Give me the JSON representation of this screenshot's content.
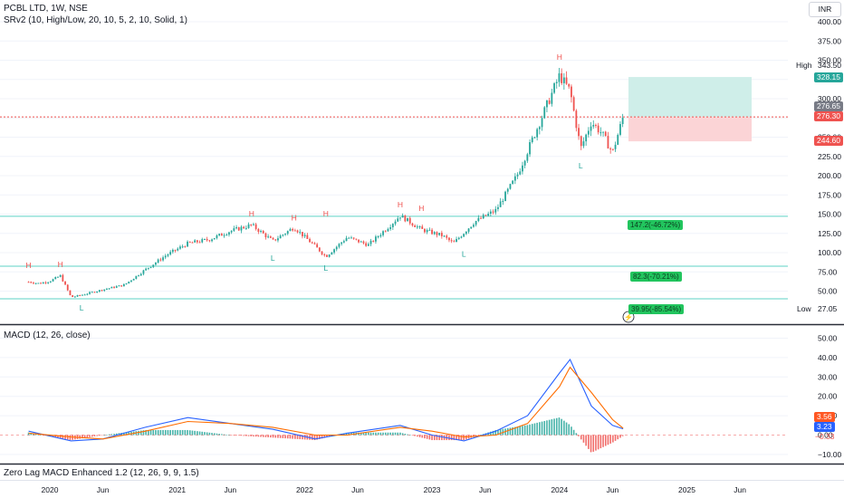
{
  "header": {
    "symbol_line": "PCBL LTD, 1W, NSE",
    "indicator_line": "SRv2 (10, High/Low, 20, 10, 5, 2, 10, Solid, 1)",
    "currency": "INR"
  },
  "macd_panel": {
    "title": "MACD (12, 26, close)"
  },
  "zero_lag_panel": {
    "title": "Zero Lag MACD Enhanced 1.2 (12, 26, 9, 9, 1.5)"
  },
  "price_axis": {
    "ticks": [
      "400.00",
      "375.00",
      "350.00",
      "325.00",
      "300.00",
      "275.00",
      "250.00",
      "225.00",
      "200.00",
      "175.00",
      "150.00",
      "125.00",
      "100.00",
      "75.00",
      "50.00"
    ],
    "values": [
      400,
      375,
      350,
      325,
      300,
      275,
      250,
      225,
      200,
      175,
      150,
      125,
      100,
      75,
      50
    ]
  },
  "macd_axis": {
    "ticks": [
      "50.00",
      "40.00",
      "30.00",
      "20.00",
      "10.00",
      "0.00",
      "−10.00"
    ],
    "values": [
      50,
      40,
      30,
      20,
      10,
      0,
      -10
    ]
  },
  "time_axis": {
    "labels": [
      "2020",
      "Jun",
      "2021",
      "Jun",
      "2022",
      "Jun",
      "2023",
      "Jun",
      "2024",
      "Jun",
      "2025",
      "Jun"
    ]
  },
  "price_badges": {
    "high_label": "High",
    "high_value": "343.50",
    "target_value": "328.15",
    "current_value": "276.65",
    "entry_value": "276.30",
    "stop_value": "244.60",
    "low_label": "Low",
    "low_value": "27.05"
  },
  "macd_badges": {
    "signal": "3.56",
    "macd": "3.23",
    "hist": "−0.33"
  },
  "level_labels": [
    "147.2(-46.72%)",
    "82.3(-70.21%)",
    "39.95(-85.54%)"
  ],
  "pivot_marks": {
    "high": "H",
    "low": "L"
  },
  "colors": {
    "up": "#26a69a",
    "down": "#ef5350",
    "macd": "#2962ff",
    "signal": "#ff6d00",
    "level": "#5ed3c5",
    "target_zone": "#cfeee9",
    "stop_zone": "#fbd4d6",
    "entry_line": "#ef5350",
    "badge_green": "#22c55e"
  },
  "chart_data": [
    {
      "type": "candlestick",
      "title": "PCBL LTD, 1W, NSE",
      "x_range": [
        "2019-11",
        "2025-08"
      ],
      "ylim": [
        27.05,
        400
      ],
      "close_approx": [
        {
          "date": "2019-11",
          "value": 62
        },
        {
          "date": "2019-12",
          "value": 60
        },
        {
          "date": "2020-01",
          "value": 63
        },
        {
          "date": "2020-02",
          "value": 70
        },
        {
          "date": "2020-03",
          "value": 42
        },
        {
          "date": "2020-04",
          "value": 45
        },
        {
          "date": "2020-06",
          "value": 52
        },
        {
          "date": "2020-08",
          "value": 58
        },
        {
          "date": "2020-10",
          "value": 78
        },
        {
          "date": "2020-12",
          "value": 97
        },
        {
          "date": "2021-02",
          "value": 112
        },
        {
          "date": "2021-04",
          "value": 117
        },
        {
          "date": "2021-06",
          "value": 128
        },
        {
          "date": "2021-08",
          "value": 136
        },
        {
          "date": "2021-10",
          "value": 115
        },
        {
          "date": "2021-12",
          "value": 133
        },
        {
          "date": "2022-02",
          "value": 108
        },
        {
          "date": "2022-03",
          "value": 95
        },
        {
          "date": "2022-05",
          "value": 120
        },
        {
          "date": "2022-07",
          "value": 110
        },
        {
          "date": "2022-09",
          "value": 135
        },
        {
          "date": "2022-10",
          "value": 148
        },
        {
          "date": "2022-12",
          "value": 130
        },
        {
          "date": "2023-02",
          "value": 122
        },
        {
          "date": "2023-03",
          "value": 112
        },
        {
          "date": "2023-05",
          "value": 140
        },
        {
          "date": "2023-07",
          "value": 155
        },
        {
          "date": "2023-09",
          "value": 200
        },
        {
          "date": "2023-11",
          "value": 265
        },
        {
          "date": "2024-01",
          "value": 330
        },
        {
          "date": "2024-02",
          "value": 310
        },
        {
          "date": "2024-03",
          "value": 235
        },
        {
          "date": "2024-04",
          "value": 270
        },
        {
          "date": "2024-05",
          "value": 255
        },
        {
          "date": "2024-06",
          "value": 230
        },
        {
          "date": "2024-07",
          "value": 276.65
        }
      ],
      "pivots": [
        {
          "date": "2019-11",
          "kind": "H",
          "value": 73
        },
        {
          "date": "2020-02",
          "kind": "H",
          "value": 74
        },
        {
          "date": "2020-04",
          "kind": "L",
          "value": 40
        },
        {
          "date": "2021-08",
          "kind": "H",
          "value": 140
        },
        {
          "date": "2021-12",
          "kind": "H",
          "value": 135
        },
        {
          "date": "2021-10",
          "kind": "L",
          "value": 105
        },
        {
          "date": "2022-03",
          "kind": "L",
          "value": 92
        },
        {
          "date": "2022-03",
          "kind": "H",
          "value": 140
        },
        {
          "date": "2022-10",
          "kind": "H",
          "value": 152
        },
        {
          "date": "2022-12",
          "kind": "H",
          "value": 147
        },
        {
          "date": "2023-04",
          "kind": "L",
          "value": 110
        },
        {
          "date": "2024-01",
          "kind": "H",
          "value": 343.5
        },
        {
          "date": "2024-03",
          "kind": "L",
          "value": 225
        }
      ],
      "levels": [
        147.2,
        82.3,
        39.95
      ],
      "position": {
        "entry": 276.3,
        "target": 328.15,
        "stop": 244.6
      }
    },
    {
      "type": "line",
      "title": "MACD (12, 26, close)",
      "ylim": [
        -12,
        52
      ],
      "x": [
        "2019-11",
        "2020-03",
        "2020-06",
        "2020-10",
        "2021-02",
        "2021-06",
        "2021-10",
        "2022-02",
        "2022-05",
        "2022-10",
        "2023-01",
        "2023-04",
        "2023-07",
        "2023-10",
        "2024-01",
        "2024-02",
        "2024-04",
        "2024-06",
        "2024-07"
      ],
      "series": [
        {
          "name": "MACD",
          "values": [
            2,
            -3,
            -2,
            4,
            9,
            6,
            3,
            -2,
            1,
            5,
            0,
            -3,
            2,
            10,
            32,
            39,
            15,
            5,
            3.23
          ]
        },
        {
          "name": "Signal",
          "values": [
            1,
            -1,
            -2,
            2,
            7,
            6,
            4,
            0,
            0,
            4,
            2,
            -1,
            0,
            6,
            25,
            35,
            22,
            8,
            3.56
          ]
        }
      ],
      "histogram_last": -0.33
    }
  ]
}
